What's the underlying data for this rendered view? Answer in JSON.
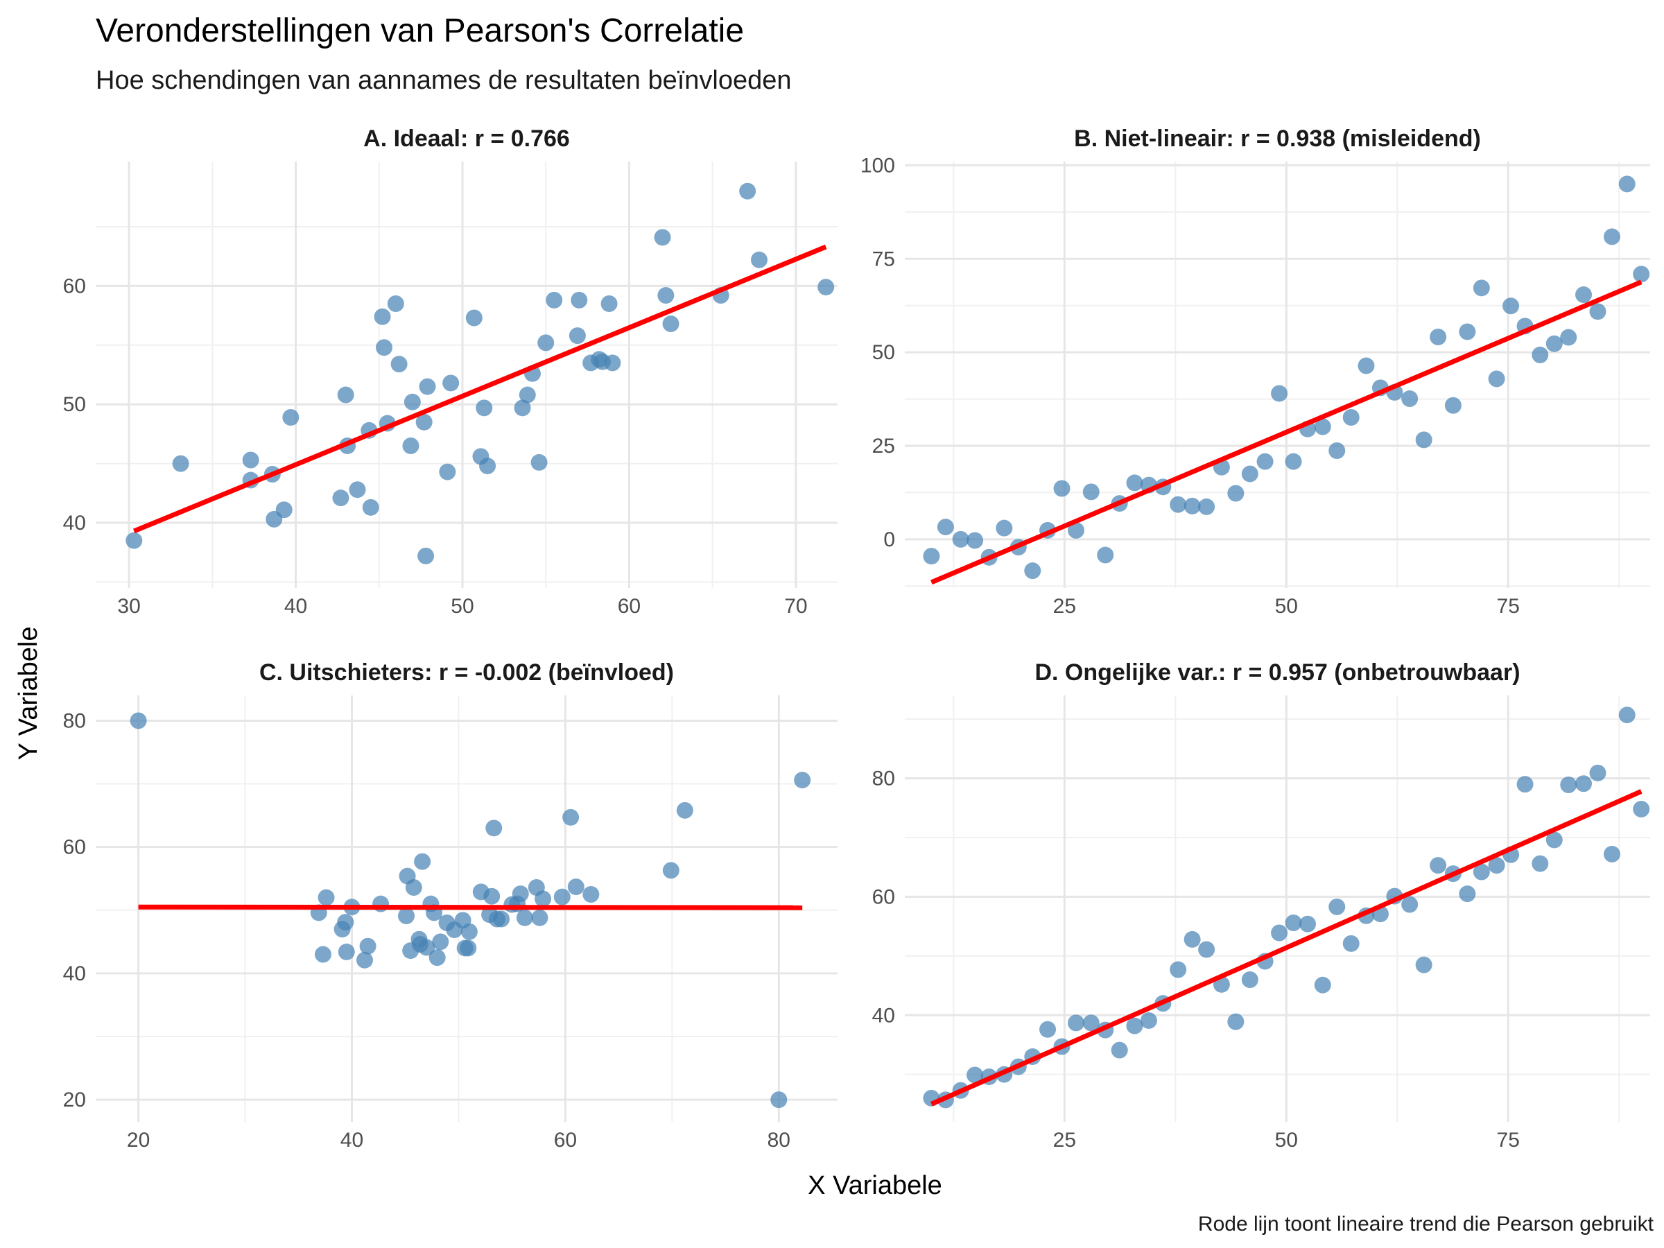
{
  "title": "Veronderstellingen van Pearson's Correlatie",
  "subtitle": "Hoe schendingen van aannames de resultaten beïnvloeden",
  "xlabel": "X Variabele",
  "ylabel": "Y Variabele",
  "caption": "Rode lijn toont lineaire trend die Pearson gebruikt",
  "colors": {
    "points": "#4682B4",
    "trend": "#FF0000",
    "grid": "#E6E6E6"
  },
  "chart_data": [
    {
      "type": "scatter",
      "title": "A. Ideaal: r = 0.766",
      "xlim": [
        28,
        72.5
      ],
      "ylim": [
        34.5,
        70.5
      ],
      "x_ticks": [
        30,
        40,
        50,
        60,
        70
      ],
      "y_ticks": [
        40,
        50,
        60
      ],
      "trend": {
        "x": [
          30.3,
          71.8
        ],
        "y": [
          39.3,
          63.3
        ]
      },
      "points": [
        [
          30.3,
          38.5
        ],
        [
          33.1,
          45.0
        ],
        [
          37.3,
          45.3
        ],
        [
          37.3,
          43.6
        ],
        [
          38.6,
          44.1
        ],
        [
          38.7,
          40.3
        ],
        [
          39.3,
          41.1
        ],
        [
          39.7,
          48.9
        ],
        [
          42.7,
          42.1
        ],
        [
          43.0,
          50.8
        ],
        [
          43.1,
          46.5
        ],
        [
          43.7,
          42.8
        ],
        [
          44.4,
          47.8
        ],
        [
          44.5,
          41.3
        ],
        [
          45.2,
          57.4
        ],
        [
          45.3,
          54.8
        ],
        [
          45.5,
          48.4
        ],
        [
          46.0,
          58.5
        ],
        [
          46.2,
          53.4
        ],
        [
          46.9,
          46.5
        ],
        [
          47.0,
          50.2
        ],
        [
          47.7,
          48.5
        ],
        [
          47.8,
          37.2
        ],
        [
          47.9,
          51.5
        ],
        [
          49.1,
          44.3
        ],
        [
          49.3,
          51.8
        ],
        [
          50.7,
          57.3
        ],
        [
          51.1,
          45.6
        ],
        [
          51.3,
          49.7
        ],
        [
          51.5,
          44.8
        ],
        [
          53.6,
          49.7
        ],
        [
          53.9,
          50.8
        ],
        [
          54.2,
          52.6
        ],
        [
          54.6,
          45.1
        ],
        [
          55.0,
          55.2
        ],
        [
          55.5,
          58.8
        ],
        [
          56.9,
          55.8
        ],
        [
          57.0,
          58.8
        ],
        [
          57.7,
          53.5
        ],
        [
          58.2,
          53.8
        ],
        [
          58.4,
          53.6
        ],
        [
          58.8,
          58.5
        ],
        [
          59.0,
          53.5
        ],
        [
          62.0,
          64.1
        ],
        [
          62.2,
          59.2
        ],
        [
          62.5,
          56.8
        ],
        [
          65.5,
          59.2
        ],
        [
          67.1,
          68.0
        ],
        [
          67.8,
          62.2
        ],
        [
          71.8,
          59.9
        ]
      ]
    },
    {
      "type": "scatter",
      "title": "B. Niet-lineair: r = 0.938 (misleidend)",
      "xlim": [
        7,
        91
      ],
      "ylim": [
        -13,
        101
      ],
      "x_ticks": [
        25,
        50,
        75
      ],
      "y_ticks": [
        0,
        25,
        50,
        75,
        100
      ],
      "trend": {
        "x": [
          10.0,
          90.0
        ],
        "y": [
          -11.5,
          68.8
        ]
      },
      "points": [
        [
          10.0,
          -4.5
        ],
        [
          11.6,
          3.3
        ],
        [
          13.3,
          0.0
        ],
        [
          14.9,
          -0.3
        ],
        [
          16.5,
          -4.8
        ],
        [
          18.2,
          3.0
        ],
        [
          19.8,
          -2.1
        ],
        [
          21.4,
          -8.4
        ],
        [
          23.1,
          2.4
        ],
        [
          24.7,
          13.6
        ],
        [
          26.3,
          2.4
        ],
        [
          28.0,
          12.7
        ],
        [
          29.6,
          -4.2
        ],
        [
          31.2,
          9.6
        ],
        [
          32.9,
          15.1
        ],
        [
          34.5,
          14.5
        ],
        [
          36.1,
          14.0
        ],
        [
          37.8,
          9.3
        ],
        [
          39.4,
          8.9
        ],
        [
          41.0,
          8.7
        ],
        [
          42.7,
          19.3
        ],
        [
          44.3,
          12.3
        ],
        [
          45.9,
          17.5
        ],
        [
          47.6,
          20.8
        ],
        [
          49.2,
          39.0
        ],
        [
          50.8,
          20.8
        ],
        [
          52.4,
          29.5
        ],
        [
          54.1,
          30.1
        ],
        [
          55.7,
          23.7
        ],
        [
          57.3,
          32.6
        ],
        [
          59.0,
          46.4
        ],
        [
          60.6,
          40.5
        ],
        [
          62.2,
          39.3
        ],
        [
          63.9,
          37.6
        ],
        [
          65.5,
          26.6
        ],
        [
          67.1,
          54.1
        ],
        [
          68.8,
          35.8
        ],
        [
          70.4,
          55.5
        ],
        [
          72.0,
          67.2
        ],
        [
          73.7,
          42.9
        ],
        [
          75.3,
          62.4
        ],
        [
          76.9,
          57.0
        ],
        [
          78.6,
          49.3
        ],
        [
          80.2,
          52.3
        ],
        [
          81.8,
          54.0
        ],
        [
          83.5,
          65.4
        ],
        [
          85.1,
          60.9
        ],
        [
          86.7,
          80.9
        ],
        [
          88.4,
          95.0
        ],
        [
          90.0,
          70.9
        ]
      ]
    },
    {
      "type": "scatter",
      "title": "C. Uitschieters: r = -0.002 (beïnvloed)",
      "xlim": [
        16,
        85.5
      ],
      "ylim": [
        16.5,
        84
      ],
      "x_ticks": [
        20,
        40,
        60,
        80
      ],
      "y_ticks": [
        20,
        40,
        60,
        80
      ],
      "trend": {
        "x": [
          20.0,
          82.2
        ],
        "y": [
          50.5,
          50.4
        ]
      },
      "points": [
        [
          20.0,
          80.0
        ],
        [
          80.0,
          20.0
        ],
        [
          82.2,
          70.6
        ],
        [
          36.9,
          49.6
        ],
        [
          37.3,
          43.0
        ],
        [
          37.6,
          52.0
        ],
        [
          39.1,
          47.0
        ],
        [
          39.4,
          48.1
        ],
        [
          39.5,
          43.4
        ],
        [
          40.0,
          50.5
        ],
        [
          41.2,
          42.1
        ],
        [
          41.5,
          44.3
        ],
        [
          42.7,
          51.0
        ],
        [
          45.1,
          49.1
        ],
        [
          45.2,
          55.4
        ],
        [
          45.5,
          43.6
        ],
        [
          45.8,
          53.6
        ],
        [
          46.3,
          45.4
        ],
        [
          46.4,
          44.6
        ],
        [
          46.6,
          57.7
        ],
        [
          47.0,
          44.1
        ],
        [
          47.4,
          51.0
        ],
        [
          47.7,
          49.6
        ],
        [
          48.0,
          42.5
        ],
        [
          48.3,
          45.0
        ],
        [
          48.9,
          48.0
        ],
        [
          49.6,
          46.9
        ],
        [
          50.4,
          48.4
        ],
        [
          50.6,
          44.0
        ],
        [
          50.9,
          44.0
        ],
        [
          51.0,
          46.6
        ],
        [
          52.1,
          52.9
        ],
        [
          52.9,
          49.3
        ],
        [
          53.1,
          52.2
        ],
        [
          53.3,
          63.0
        ],
        [
          53.6,
          48.6
        ],
        [
          54.0,
          48.6
        ],
        [
          55.0,
          50.9
        ],
        [
          55.5,
          51.0
        ],
        [
          55.8,
          52.6
        ],
        [
          56.2,
          48.8
        ],
        [
          57.3,
          53.6
        ],
        [
          57.6,
          48.8
        ],
        [
          57.9,
          51.8
        ],
        [
          59.7,
          52.1
        ],
        [
          60.5,
          64.7
        ],
        [
          61.0,
          53.7
        ],
        [
          62.4,
          52.5
        ],
        [
          69.9,
          56.3
        ],
        [
          71.2,
          65.8
        ]
      ]
    },
    {
      "type": "scatter",
      "title": "D. Ongelijke var.: r = 0.957 (onbetrouwbaar)",
      "xlim": [
        7,
        91
      ],
      "ylim": [
        22,
        94
      ],
      "x_ticks": [
        25,
        50,
        75
      ],
      "y_ticks": [
        40,
        60,
        80
      ],
      "trend": {
        "x": [
          10.0,
          90.0
        ],
        "y": [
          25.0,
          77.8
        ]
      },
      "points": [
        [
          10.0,
          26.0
        ],
        [
          11.6,
          25.7
        ],
        [
          13.3,
          27.3
        ],
        [
          14.9,
          29.9
        ],
        [
          16.5,
          29.6
        ],
        [
          18.2,
          30.0
        ],
        [
          19.8,
          31.3
        ],
        [
          21.4,
          33.0
        ],
        [
          23.1,
          37.6
        ],
        [
          24.7,
          34.7
        ],
        [
          26.3,
          38.7
        ],
        [
          28.0,
          38.7
        ],
        [
          29.6,
          37.5
        ],
        [
          31.2,
          34.1
        ],
        [
          32.9,
          38.2
        ],
        [
          34.5,
          39.1
        ],
        [
          36.1,
          42.0
        ],
        [
          37.8,
          47.7
        ],
        [
          39.4,
          52.8
        ],
        [
          41.0,
          51.1
        ],
        [
          42.7,
          45.2
        ],
        [
          44.3,
          38.9
        ],
        [
          45.9,
          46.0
        ],
        [
          47.6,
          49.1
        ],
        [
          49.2,
          53.9
        ],
        [
          50.8,
          55.6
        ],
        [
          52.4,
          55.4
        ],
        [
          54.1,
          45.1
        ],
        [
          55.7,
          58.3
        ],
        [
          57.3,
          52.1
        ],
        [
          59.0,
          56.8
        ],
        [
          60.6,
          57.1
        ],
        [
          62.2,
          60.1
        ],
        [
          63.9,
          58.7
        ],
        [
          65.5,
          48.5
        ],
        [
          67.1,
          65.3
        ],
        [
          68.8,
          63.9
        ],
        [
          70.4,
          60.5
        ],
        [
          72.0,
          64.2
        ],
        [
          73.7,
          65.3
        ],
        [
          75.3,
          67.1
        ],
        [
          76.9,
          79.0
        ],
        [
          78.6,
          65.6
        ],
        [
          80.2,
          69.6
        ],
        [
          81.8,
          78.9
        ],
        [
          83.5,
          79.1
        ],
        [
          85.1,
          80.9
        ],
        [
          86.7,
          67.2
        ],
        [
          88.4,
          90.7
        ],
        [
          90.0,
          74.8
        ]
      ]
    }
  ]
}
